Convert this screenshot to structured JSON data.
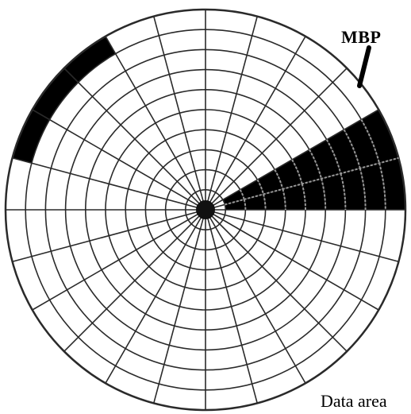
{
  "labels": {
    "mbp": "MBP",
    "data_area": "Data area"
  },
  "disk": {
    "rings": 10,
    "sectors": 24,
    "mbp_ring_index": 9,
    "mbp_sector_indices": [
      19,
      20,
      21
    ],
    "data_area_sector_indices": [
      4,
      5
    ],
    "data_area_first_ring": 1,
    "colors": {
      "line": "#2a2a2a",
      "fill": "#000000",
      "background": "#ffffff",
      "data_grid": "#9a9a9a"
    }
  }
}
